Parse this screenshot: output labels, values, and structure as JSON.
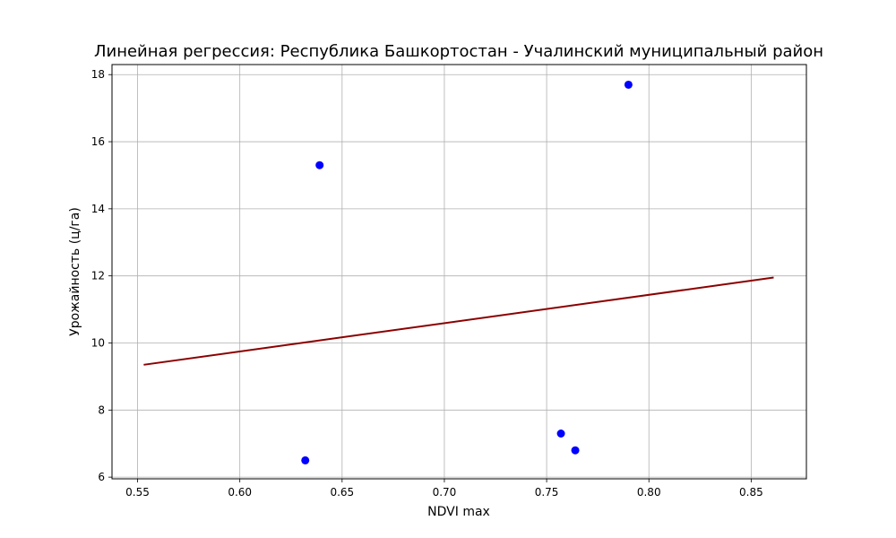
{
  "chart_data": {
    "type": "scatter",
    "title": "Линейная регрессия: Республика Башкортостан - Учалинский муниципальный район",
    "xlabel": "NDVI max",
    "ylabel": "Урожайность (ц/га)",
    "xlim": [
      0.5375,
      0.877
    ],
    "ylim": [
      5.95,
      18.3
    ],
    "xticks": [
      0.55,
      0.6,
      0.65,
      0.7,
      0.75,
      0.8,
      0.85
    ],
    "xtick_labels": [
      "0.55",
      "0.60",
      "0.65",
      "0.70",
      "0.75",
      "0.80",
      "0.85"
    ],
    "yticks": [
      6,
      8,
      10,
      12,
      14,
      16,
      18
    ],
    "ytick_labels": [
      "6",
      "8",
      "10",
      "12",
      "14",
      "16",
      "18"
    ],
    "grid": true,
    "series": [
      {
        "kind": "scatter",
        "color": "#0000ff",
        "points": [
          {
            "x": 0.639,
            "y": 15.3
          },
          {
            "x": 0.79,
            "y": 17.7
          },
          {
            "x": 0.632,
            "y": 6.5
          },
          {
            "x": 0.757,
            "y": 7.3
          },
          {
            "x": 0.764,
            "y": 6.8
          }
        ]
      },
      {
        "kind": "line",
        "color": "#8b0000",
        "points": [
          {
            "x": 0.553,
            "y": 9.35
          },
          {
            "x": 0.861,
            "y": 11.95
          }
        ]
      }
    ]
  }
}
